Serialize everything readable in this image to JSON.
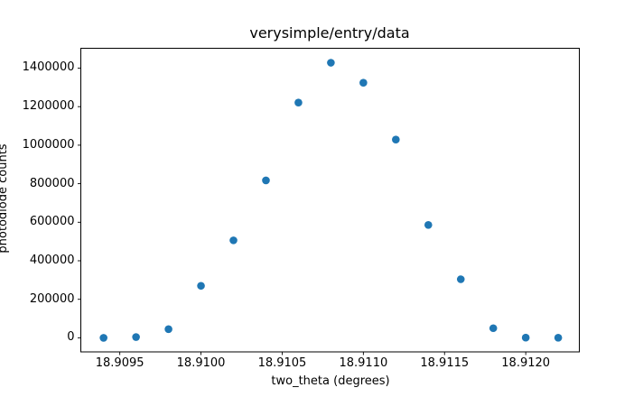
{
  "figure": {
    "background": "#ffffff",
    "axes_background": "#ffffff",
    "spine_color": "#000000",
    "text_color": "#000000"
  },
  "chart_data": {
    "type": "scatter",
    "title": "verysimple/entry/data",
    "xlabel": "two_theta (degrees)",
    "ylabel": "photodiode counts",
    "marker_color": "#1f77b4",
    "grid": false,
    "legend": false,
    "x": [
      18.9094,
      18.9096,
      18.9098,
      18.91,
      18.9102,
      18.9104,
      18.9106,
      18.9108,
      18.911,
      18.9112,
      18.9114,
      18.9116,
      18.9118,
      18.912,
      18.9122
    ],
    "y": [
      0,
      4000,
      45000,
      270000,
      506000,
      817000,
      1221000,
      1428000,
      1324000,
      1029000,
      586000,
      304000,
      50000,
      1000,
      500
    ],
    "xlim": [
      18.90926,
      18.91233
    ],
    "ylim": [
      -73000,
      1503000
    ],
    "xticks": [
      18.9095,
      18.91,
      18.9105,
      18.911,
      18.9115,
      18.912
    ],
    "xtick_labels": [
      "18.9095",
      "18.9100",
      "18.9105",
      "18.9110",
      "18.9115",
      "18.9120"
    ],
    "yticks": [
      0,
      200000,
      400000,
      600000,
      800000,
      1000000,
      1200000,
      1400000
    ],
    "ytick_labels": [
      "0",
      "200000",
      "400000",
      "600000",
      "800000",
      "1000000",
      "1200000",
      "1400000"
    ]
  }
}
